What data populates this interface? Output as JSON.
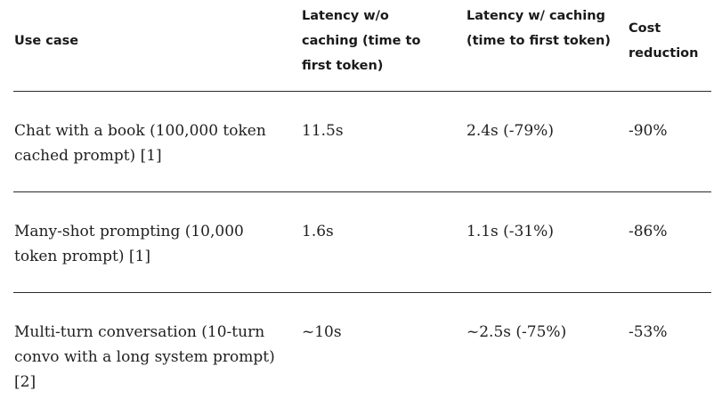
{
  "table": {
    "headers": {
      "use_case": "Use case",
      "latency_no_cache": "Latency w/o caching (time to first token)",
      "latency_cache": "Latency w/ caching (time to first token)",
      "cost_reduction": "Cost reduction"
    },
    "rows": [
      {
        "use_case": "Chat with a book (100,000 token cached prompt) [1]",
        "latency_no_cache": "11.5s",
        "latency_cache": "2.4s (-79%)",
        "cost_reduction": "-90%"
      },
      {
        "use_case": "Many-shot prompting (10,000 token prompt) [1]",
        "latency_no_cache": "1.6s",
        "latency_cache": "1.1s (-31%)",
        "cost_reduction": "-86%"
      },
      {
        "use_case": "Multi-turn conversation (10-turn convo with a long system prompt) [2]",
        "latency_no_cache": "~10s",
        "latency_cache": "~2.5s (-75%)",
        "cost_reduction": "-53%"
      }
    ]
  }
}
